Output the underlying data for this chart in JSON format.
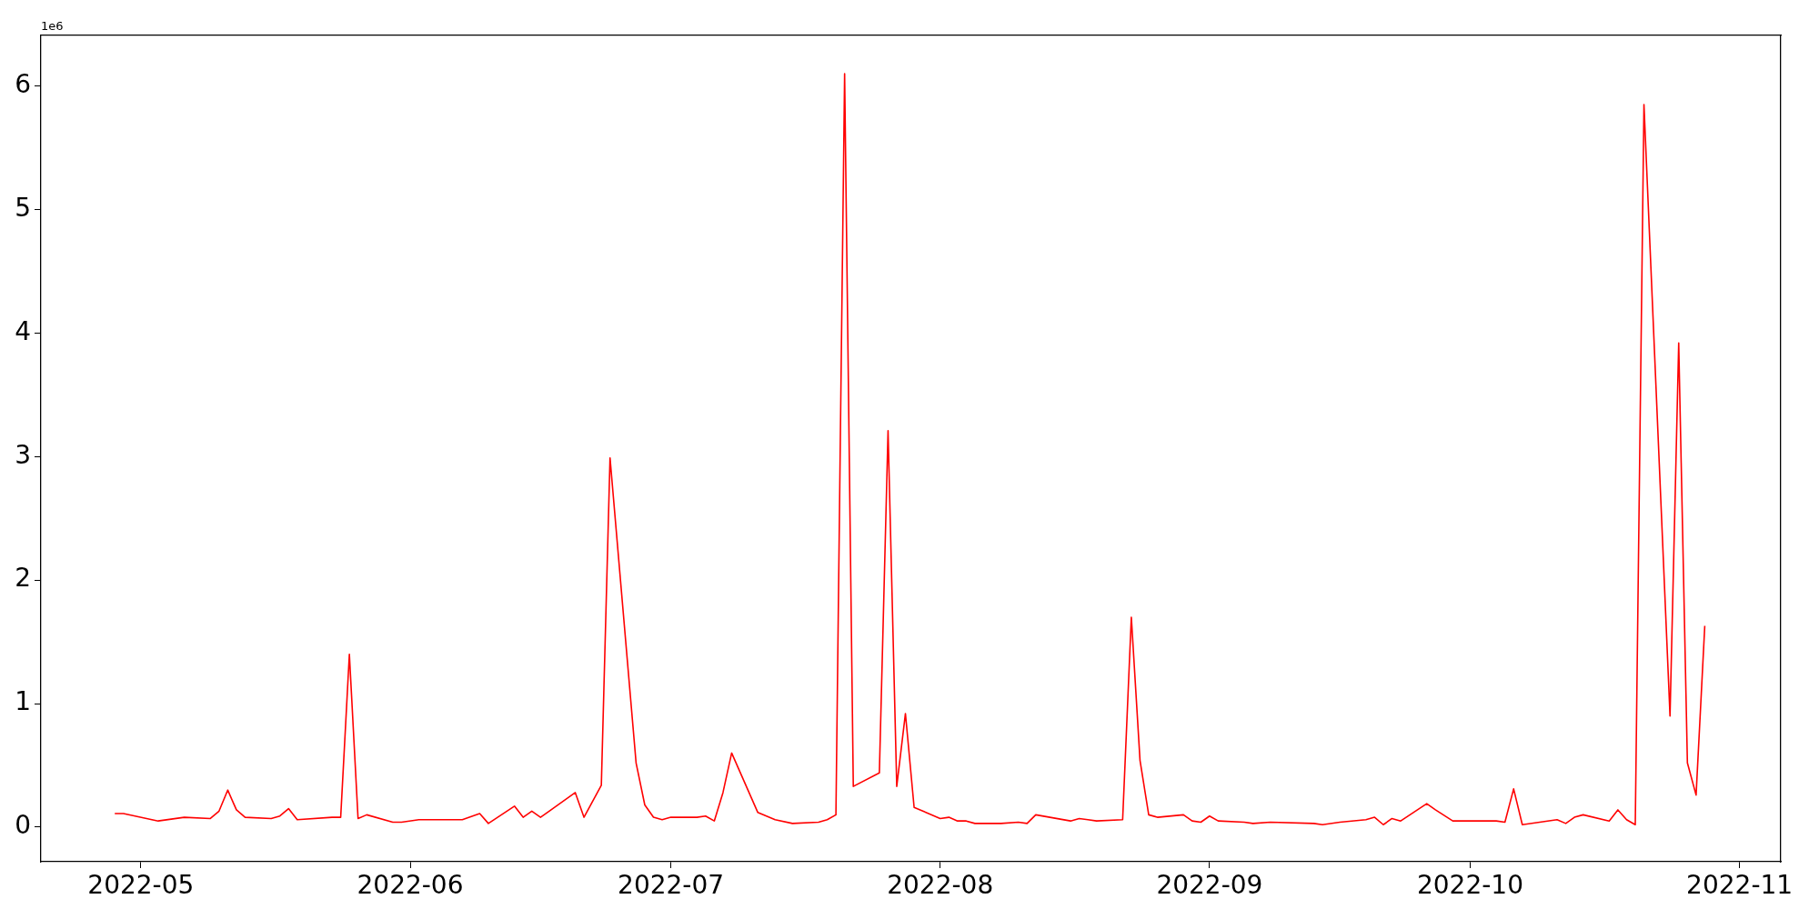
{
  "chart_data": {
    "type": "line",
    "annotations": [
      "1e6"
    ],
    "x": [
      "2022-04-28",
      "2022-04-29",
      "2022-05-03",
      "2022-05-06",
      "2022-05-09",
      "2022-05-10",
      "2022-05-11",
      "2022-05-12",
      "2022-05-13",
      "2022-05-16",
      "2022-05-17",
      "2022-05-18",
      "2022-05-19",
      "2022-05-23",
      "2022-05-24",
      "2022-05-25",
      "2022-05-26",
      "2022-05-27",
      "2022-05-30",
      "2022-05-31",
      "2022-06-02",
      "2022-06-03",
      "2022-06-07",
      "2022-06-09",
      "2022-06-10",
      "2022-06-13",
      "2022-06-14",
      "2022-06-15",
      "2022-06-16",
      "2022-06-17",
      "2022-06-20",
      "2022-06-21",
      "2022-06-23",
      "2022-06-24",
      "2022-06-27",
      "2022-06-28",
      "2022-06-29",
      "2022-06-30",
      "2022-07-01",
      "2022-07-04",
      "2022-07-05",
      "2022-07-06",
      "2022-07-07",
      "2022-07-08",
      "2022-07-11",
      "2022-07-13",
      "2022-07-15",
      "2022-07-18",
      "2022-07-19",
      "2022-07-20",
      "2022-07-21",
      "2022-07-22",
      "2022-07-25",
      "2022-07-26",
      "2022-07-27",
      "2022-07-28",
      "2022-07-29",
      "2022-08-01",
      "2022-08-02",
      "2022-08-03",
      "2022-08-04",
      "2022-08-05",
      "2022-08-08",
      "2022-08-10",
      "2022-08-11",
      "2022-08-12",
      "2022-08-16",
      "2022-08-17",
      "2022-08-18",
      "2022-08-19",
      "2022-08-22",
      "2022-08-23",
      "2022-08-24",
      "2022-08-25",
      "2022-08-26",
      "2022-08-29",
      "2022-08-30",
      "2022-08-31",
      "2022-09-01",
      "2022-09-02",
      "2022-09-05",
      "2022-09-06",
      "2022-09-08",
      "2022-09-13",
      "2022-09-14",
      "2022-09-16",
      "2022-09-19",
      "2022-09-20",
      "2022-09-21",
      "2022-09-22",
      "2022-09-23",
      "2022-09-26",
      "2022-09-27",
      "2022-09-29",
      "2022-09-30",
      "2022-10-04",
      "2022-10-05",
      "2022-10-06",
      "2022-10-07",
      "2022-10-11",
      "2022-10-12",
      "2022-10-13",
      "2022-10-14",
      "2022-10-17",
      "2022-10-18",
      "2022-10-19",
      "2022-10-20",
      "2022-10-21",
      "2022-10-24",
      "2022-10-25",
      "2022-10-26",
      "2022-10-27",
      "2022-10-28"
    ],
    "series": [
      {
        "color": "#ff0000",
        "values": [
          0.11,
          0.11,
          0.05,
          0.08,
          0.07,
          0.13,
          0.3,
          0.14,
          0.08,
          0.07,
          0.09,
          0.15,
          0.06,
          0.08,
          0.08,
          1.4,
          0.07,
          0.1,
          0.04,
          0.04,
          0.06,
          0.06,
          0.06,
          0.11,
          0.03,
          0.17,
          0.08,
          0.13,
          0.08,
          0.13,
          0.28,
          0.08,
          0.34,
          2.99,
          0.52,
          0.18,
          0.08,
          0.06,
          0.08,
          0.08,
          0.09,
          0.05,
          0.28,
          0.6,
          0.12,
          0.06,
          0.03,
          0.04,
          0.06,
          0.1,
          6.1,
          0.33,
          0.44,
          3.21,
          0.33,
          0.92,
          0.16,
          0.07,
          0.08,
          0.05,
          0.05,
          0.03,
          0.03,
          0.04,
          0.03,
          0.1,
          0.05,
          0.07,
          0.06,
          0.05,
          0.06,
          1.7,
          0.54,
          0.1,
          0.08,
          0.1,
          0.05,
          0.04,
          0.09,
          0.05,
          0.04,
          0.03,
          0.04,
          0.03,
          0.02,
          0.04,
          0.06,
          0.08,
          0.02,
          0.07,
          0.05,
          0.19,
          0.14,
          0.05,
          0.05,
          0.05,
          0.04,
          0.31,
          0.02,
          0.06,
          0.03,
          0.08,
          0.1,
          0.05,
          0.14,
          0.06,
          0.02,
          5.85,
          0.9,
          3.92,
          0.52,
          0.26,
          1.63
        ]
      }
    ],
    "xlim": [
      "2022-04-19T12:00",
      "2022-11-05T18:00"
    ],
    "xticks": [
      {
        "value": "2022-05-01",
        "label": "2022-05"
      },
      {
        "value": "2022-06-01",
        "label": "2022-06"
      },
      {
        "value": "2022-07-01",
        "label": "2022-07"
      },
      {
        "value": "2022-08-01",
        "label": "2022-08"
      },
      {
        "value": "2022-09-01",
        "label": "2022-09"
      },
      {
        "value": "2022-10-01",
        "label": "2022-10"
      },
      {
        "value": "2022-11-01",
        "label": "2022-11"
      }
    ],
    "ylim": [
      -0.28,
      6.41
    ],
    "yticks": [
      0,
      1,
      2,
      3,
      4,
      5,
      6
    ],
    "grid": false,
    "legend": false
  }
}
